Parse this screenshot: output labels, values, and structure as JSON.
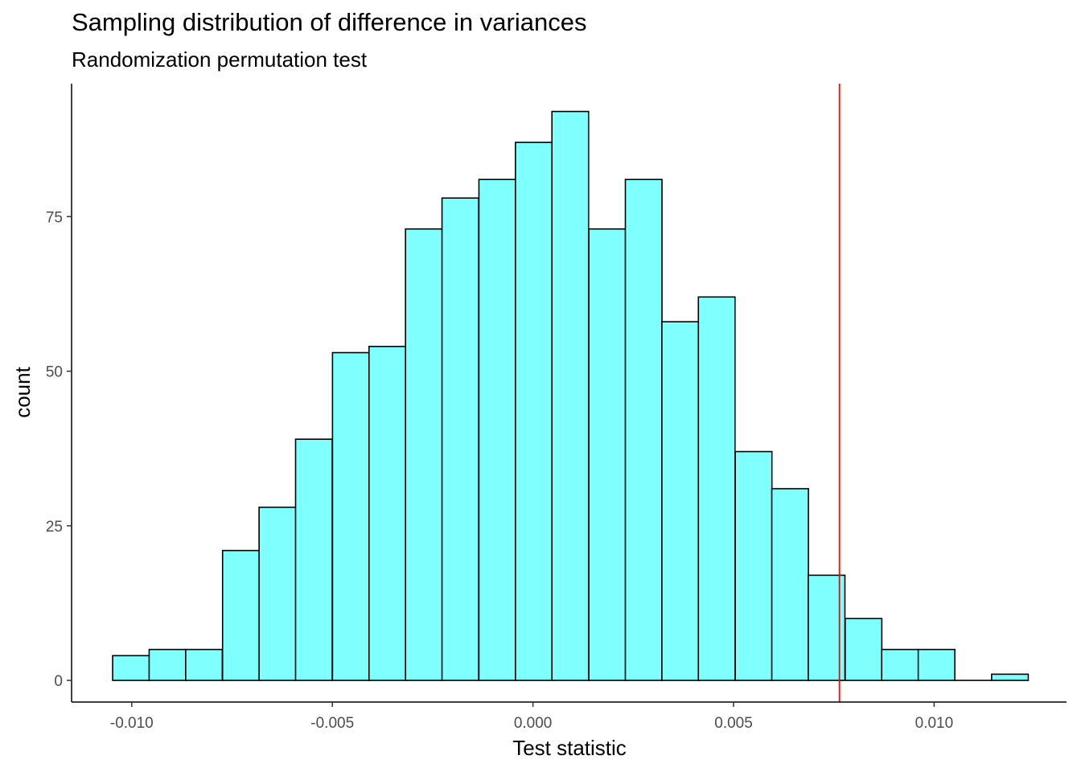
{
  "chart_data": {
    "type": "bar",
    "title": "Sampling distribution of difference in variances",
    "subtitle": "Randomization permutation test",
    "xlabel": "Test statistic",
    "ylabel": "count",
    "xlim": [
      -0.0115,
      0.0133
    ],
    "ylim": [
      -3.5,
      96.5
    ],
    "grid": false,
    "x_ticks": [
      -0.01,
      -0.005,
      0.0,
      0.005,
      0.01
    ],
    "x_tick_labels": [
      "-0.010",
      "-0.005",
      "0.000",
      "0.005",
      "0.010"
    ],
    "y_ticks": [
      0,
      25,
      50,
      75
    ],
    "y_tick_labels": [
      "0",
      "25",
      "50",
      "75"
    ],
    "bin_width": 0.000913,
    "bin_centers": [
      -0.01002,
      -0.00911,
      -0.0082,
      -0.00728,
      -0.00637,
      -0.00546,
      -0.00454,
      -0.00363,
      -0.00272,
      -0.00181,
      -0.00089,
      2e-05,
      0.00093,
      0.00185,
      0.00276,
      0.00367,
      0.00458,
      0.0055,
      0.00641,
      0.00732,
      0.00824,
      0.00915,
      0.01006,
      0.01097,
      0.01189
    ],
    "values": [
      4,
      5,
      5,
      21,
      28,
      39,
      53,
      54,
      73,
      78,
      81,
      87,
      92,
      73,
      81,
      58,
      62,
      37,
      31,
      17,
      10,
      5,
      5,
      0,
      1
    ],
    "bar_fill": "#80FFFF",
    "bar_outline": "#000000",
    "observed_statistic": 0.00764,
    "observed_line_color": "#FF0000"
  }
}
